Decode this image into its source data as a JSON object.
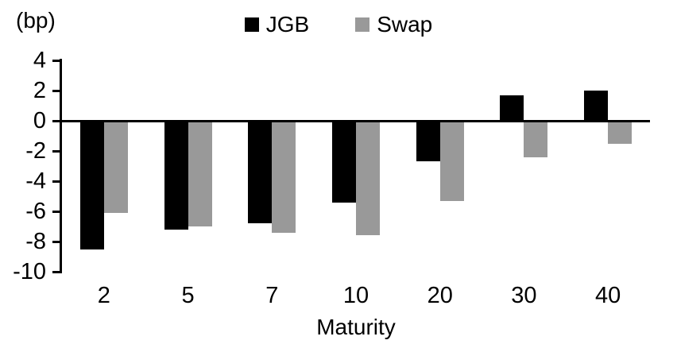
{
  "chart_data": {
    "type": "bar",
    "title": "",
    "unit_label": "(bp)",
    "xlabel": "Maturity",
    "categories": [
      "2",
      "5",
      "7",
      "10",
      "20",
      "30",
      "40"
    ],
    "series": [
      {
        "name": "JGB",
        "color": "#000000",
        "values": [
          -8.5,
          -7.2,
          -6.8,
          -5.4,
          -2.7,
          1.7,
          2.0
        ]
      },
      {
        "name": "Swap",
        "color": "#999999",
        "values": [
          -6.1,
          -7.0,
          -7.4,
          -7.6,
          -5.3,
          -2.4,
          -1.5
        ]
      }
    ],
    "y_ticks": [
      4,
      2,
      0,
      -2,
      -4,
      -6,
      -8,
      -10
    ],
    "ylim": [
      -10,
      4
    ],
    "grid": false,
    "legend_position": "top"
  }
}
